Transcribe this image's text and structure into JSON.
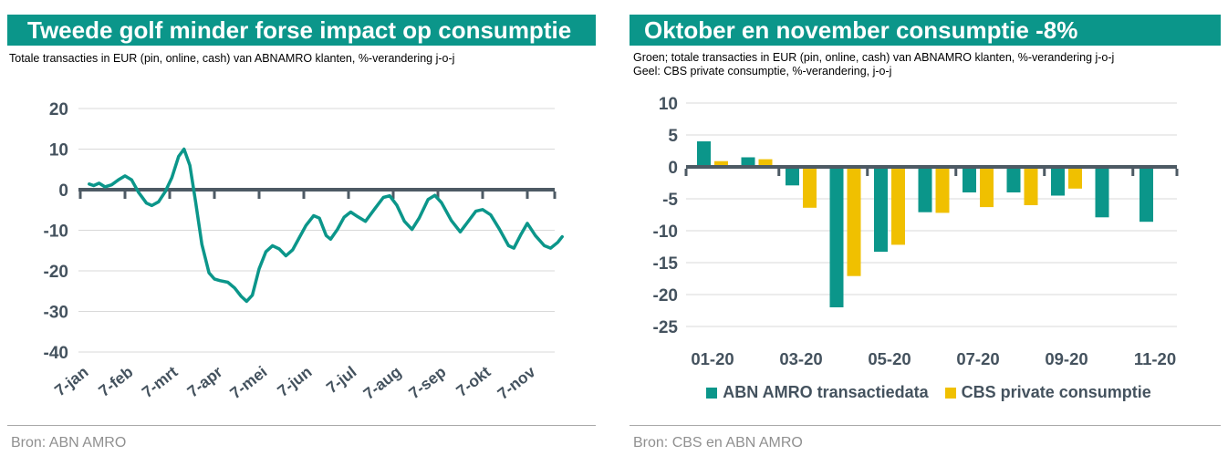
{
  "colors": {
    "accent_teal": "#0b968a",
    "accent_yellow": "#f0c000",
    "axis_line": "#4d5a64",
    "gridline": "#d9d9d9",
    "tick_label": "#44525e",
    "source_text": "#909090"
  },
  "left_panel": {
    "title": "Tweede golf minder forse impact op consumptie",
    "subtitle": "Totale transacties in EUR (pin, online, cash) van ABNAMRO klanten, %-verandering j-o-j",
    "source": "Bron: ABN AMRO"
  },
  "right_panel": {
    "title": "Oktober en november consumptie -8%",
    "subtitle_line1": "Groen; totale transacties in EUR (pin, online, cash) van ABNAMRO klanten, %-verandering j-o-j",
    "subtitle_line2": "Geel: CBS private consumptie, %-verandering, j-o-j",
    "source": "Bron: CBS en ABN AMRO",
    "legend": [
      {
        "label": "ABN AMRO transactiedata",
        "color": "#0b968a"
      },
      {
        "label": "CBS private consumptie",
        "color": "#f0c000"
      }
    ]
  },
  "chart_data": [
    {
      "type": "line",
      "title": "Tweede golf minder forse impact op consumptie",
      "ylabel": "%-verandering j-o-j",
      "ylim": [
        -40,
        20
      ],
      "grid": true,
      "line_color": "#0b968a",
      "y_ticks": [
        20,
        10,
        0,
        -10,
        -20,
        -30,
        -40
      ],
      "x_tick_labels": [
        "7-jan",
        "7-feb",
        "7-mrt",
        "7-apr",
        "7-mei",
        "7-jun",
        "7-jul",
        "7-aug",
        "7-sep",
        "7-okt",
        "7-nov"
      ],
      "points_x_unit": "months_after_7_jan",
      "points": [
        [
          0.2,
          1.4
        ],
        [
          0.3,
          1.0
        ],
        [
          0.42,
          1.6
        ],
        [
          0.55,
          0.7
        ],
        [
          0.7,
          1.2
        ],
        [
          0.85,
          2.4
        ],
        [
          1.0,
          3.4
        ],
        [
          1.15,
          2.4
        ],
        [
          1.3,
          -0.6
        ],
        [
          1.48,
          -3.3
        ],
        [
          1.6,
          -3.9
        ],
        [
          1.75,
          -3.0
        ],
        [
          1.9,
          -0.5
        ],
        [
          2.05,
          3.0
        ],
        [
          2.2,
          8.2
        ],
        [
          2.32,
          10.0
        ],
        [
          2.45,
          6.0
        ],
        [
          2.58,
          -3.0
        ],
        [
          2.72,
          -13.5
        ],
        [
          2.88,
          -20.5
        ],
        [
          3.0,
          -22.0
        ],
        [
          3.12,
          -22.4
        ],
        [
          3.3,
          -22.8
        ],
        [
          3.45,
          -24.2
        ],
        [
          3.6,
          -26.3
        ],
        [
          3.72,
          -27.5
        ],
        [
          3.85,
          -26.0
        ],
        [
          4.0,
          -19.5
        ],
        [
          4.15,
          -15.3
        ],
        [
          4.3,
          -13.8
        ],
        [
          4.45,
          -14.6
        ],
        [
          4.6,
          -16.3
        ],
        [
          4.75,
          -14.8
        ],
        [
          4.9,
          -11.8
        ],
        [
          5.05,
          -8.8
        ],
        [
          5.22,
          -6.4
        ],
        [
          5.35,
          -7.0
        ],
        [
          5.5,
          -11.3
        ],
        [
          5.6,
          -12.2
        ],
        [
          5.75,
          -9.8
        ],
        [
          5.9,
          -6.8
        ],
        [
          6.05,
          -5.5
        ],
        [
          6.2,
          -6.6
        ],
        [
          6.38,
          -7.8
        ],
        [
          6.58,
          -4.8
        ],
        [
          6.78,
          -1.9
        ],
        [
          6.92,
          -1.5
        ],
        [
          7.08,
          -3.8
        ],
        [
          7.25,
          -7.8
        ],
        [
          7.42,
          -9.8
        ],
        [
          7.58,
          -7.0
        ],
        [
          7.78,
          -2.4
        ],
        [
          7.93,
          -1.4
        ],
        [
          8.08,
          -3.2
        ],
        [
          8.3,
          -7.6
        ],
        [
          8.5,
          -10.4
        ],
        [
          8.65,
          -8.2
        ],
        [
          8.85,
          -5.3
        ],
        [
          9.0,
          -4.9
        ],
        [
          9.18,
          -6.2
        ],
        [
          9.38,
          -9.8
        ],
        [
          9.58,
          -13.8
        ],
        [
          9.7,
          -14.4
        ],
        [
          9.85,
          -11.2
        ],
        [
          10.0,
          -8.3
        ],
        [
          10.18,
          -11.3
        ],
        [
          10.38,
          -13.8
        ],
        [
          10.52,
          -14.4
        ],
        [
          10.68,
          -13.0
        ],
        [
          10.78,
          -11.6
        ]
      ]
    },
    {
      "type": "bar",
      "title": "Oktober en november consumptie -8%",
      "ylim": [
        -25,
        10
      ],
      "grid": true,
      "y_ticks": [
        10,
        5,
        0,
        -5,
        -10,
        -15,
        -20,
        -25
      ],
      "categories": [
        "01-20",
        "02-20",
        "03-20",
        "04-20",
        "05-20",
        "06-20",
        "07-20",
        "08-20",
        "09-20",
        "10-20",
        "11-20"
      ],
      "x_tick_labels": [
        "01-20",
        "03-20",
        "05-20",
        "07-20",
        "09-20",
        "11-20"
      ],
      "legend_position": "bottom",
      "series": [
        {
          "name": "ABN AMRO transactiedata",
          "color": "#0b968a",
          "values": [
            4.0,
            1.5,
            -2.9,
            -22.0,
            -13.3,
            -7.1,
            -4.0,
            -4.0,
            -4.5,
            -7.9,
            -8.6
          ]
        },
        {
          "name": "CBS private consumptie",
          "color": "#f0c000",
          "values": [
            0.9,
            1.2,
            -6.4,
            -17.1,
            -12.2,
            -7.2,
            -6.3,
            -6.0,
            -3.4,
            null,
            null
          ]
        }
      ]
    }
  ]
}
